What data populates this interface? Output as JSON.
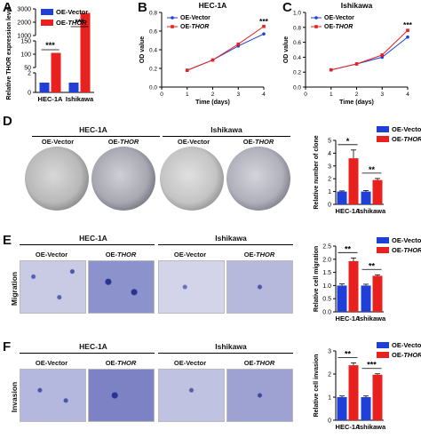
{
  "panels": {
    "A": {
      "letter": "A"
    },
    "B": {
      "letter": "B",
      "title": "HEC-1A"
    },
    "C": {
      "letter": "C",
      "title": "Ishikawa"
    },
    "D": {
      "letter": "D",
      "cell_line_1": "HEC-1A",
      "cell_line_2": "Ishikawa",
      "col_vector": "OE-Vector",
      "col_thor_prefix": "OE-",
      "col_thor_italic": "THOR"
    },
    "E": {
      "letter": "E",
      "cell_line_1": "HEC-1A",
      "cell_line_2": "Ishikawa",
      "col_vector": "OE-Vector",
      "col_thor_prefix": "OE-",
      "col_thor_italic": "THOR",
      "row_label": "Migration"
    },
    "F": {
      "letter": "F",
      "cell_line_1": "HEC-1A",
      "cell_line_2": "Ishikawa",
      "col_vector": "OE-Vector",
      "col_thor_prefix": "OE-",
      "col_thor_italic": "THOR",
      "row_label": "Invasion"
    }
  },
  "colors": {
    "vector": "#1f3fd6",
    "thor": "#e8211f"
  },
  "chart_data": [
    {
      "id": "A",
      "type": "bar",
      "ylabel": "Relative THOR expression level",
      "categories": [
        "HEC-1A",
        "Ishikawa"
      ],
      "series": [
        {
          "name": "OE-Vector",
          "values": [
            1,
            1
          ]
        },
        {
          "name": "OE-THOR",
          "values": [
            105,
            2700
          ]
        }
      ],
      "legend": [
        "OE-Vector",
        "OE-THOR"
      ],
      "y_ticks_upper": [
        "3000",
        "2000",
        "1000"
      ],
      "y_ticks_mid": [
        "150",
        "100",
        "50"
      ],
      "y_ticks_lower": [
        "2",
        "0"
      ],
      "significance": [
        "***",
        "***"
      ]
    },
    {
      "id": "B",
      "type": "line",
      "title": "HEC-1A",
      "xlabel": "Time (days)",
      "ylabel": "OD value",
      "x": [
        1,
        2,
        3,
        4
      ],
      "series": [
        {
          "name": "OE-Vector",
          "values": [
            0.18,
            0.29,
            0.44,
            0.57
          ]
        },
        {
          "name": "OE-THOR",
          "values": [
            0.18,
            0.29,
            0.46,
            0.65
          ]
        }
      ],
      "xlim": [
        0,
        4
      ],
      "ylim": [
        0,
        0.8
      ],
      "x_ticks": [
        "0",
        "1",
        "2",
        "3",
        "4"
      ],
      "y_ticks": [
        "0.0",
        "0.2",
        "0.4",
        "0.6",
        "0.8"
      ],
      "significance": "***"
    },
    {
      "id": "C",
      "type": "line",
      "title": "Ishikawa",
      "xlabel": "Time (days)",
      "ylabel": "OD value",
      "x": [
        1,
        2,
        3,
        4
      ],
      "series": [
        {
          "name": "OE-Vector",
          "values": [
            0.23,
            0.31,
            0.4,
            0.67
          ]
        },
        {
          "name": "OE-THOR",
          "values": [
            0.23,
            0.31,
            0.43,
            0.76
          ]
        }
      ],
      "xlim": [
        0,
        4
      ],
      "ylim": [
        0,
        1.0
      ],
      "x_ticks": [
        "0",
        "1",
        "2",
        "3",
        "4"
      ],
      "y_ticks": [
        "0.0",
        "0.2",
        "0.4",
        "0.6",
        "0.8",
        "1.0"
      ],
      "significance": "***"
    },
    {
      "id": "D",
      "type": "bar",
      "ylabel": "Relative number of clone",
      "categories": [
        "HEC-1A",
        "Ishikawa"
      ],
      "series": [
        {
          "name": "OE-Vector",
          "values": [
            1.0,
            1.0
          ]
        },
        {
          "name": "OE-THOR",
          "values": [
            3.6,
            1.9
          ]
        }
      ],
      "errors": [
        [
          0.05,
          0.08
        ],
        [
          0.65,
          0.12
        ]
      ],
      "ylim": [
        0,
        5
      ],
      "y_ticks": [
        "0",
        "1",
        "2",
        "3",
        "4",
        "5"
      ],
      "significance": [
        "*",
        "**"
      ]
    },
    {
      "id": "E",
      "type": "bar",
      "ylabel": "Relative cell migration",
      "categories": [
        "HEC-1A",
        "Ishikawa"
      ],
      "series": [
        {
          "name": "OE-Vector",
          "values": [
            1.0,
            1.0
          ]
        },
        {
          "name": "OE-THOR",
          "values": [
            1.93,
            1.37
          ]
        }
      ],
      "errors": [
        [
          0.06,
          0.05
        ],
        [
          0.12,
          0.04
        ]
      ],
      "ylim": [
        0,
        2.5
      ],
      "y_ticks": [
        "0.0",
        "0.5",
        "1.0",
        "1.5",
        "2.0",
        "2.5"
      ],
      "significance": [
        "**",
        "**"
      ]
    },
    {
      "id": "F",
      "type": "bar",
      "ylabel": "Relative cell invasion",
      "categories": [
        "HEC-1A",
        "Ishikawa"
      ],
      "series": [
        {
          "name": "OE-Vector",
          "values": [
            1.0,
            1.0
          ]
        },
        {
          "name": "OE-THOR",
          "values": [
            2.38,
            1.97
          ]
        }
      ],
      "errors": [
        [
          0.05,
          0.05
        ],
        [
          0.1,
          0.04
        ]
      ],
      "ylim": [
        0,
        3
      ],
      "y_ticks": [
        "0",
        "1",
        "2",
        "3"
      ],
      "significance": [
        "**",
        "***"
      ]
    }
  ]
}
